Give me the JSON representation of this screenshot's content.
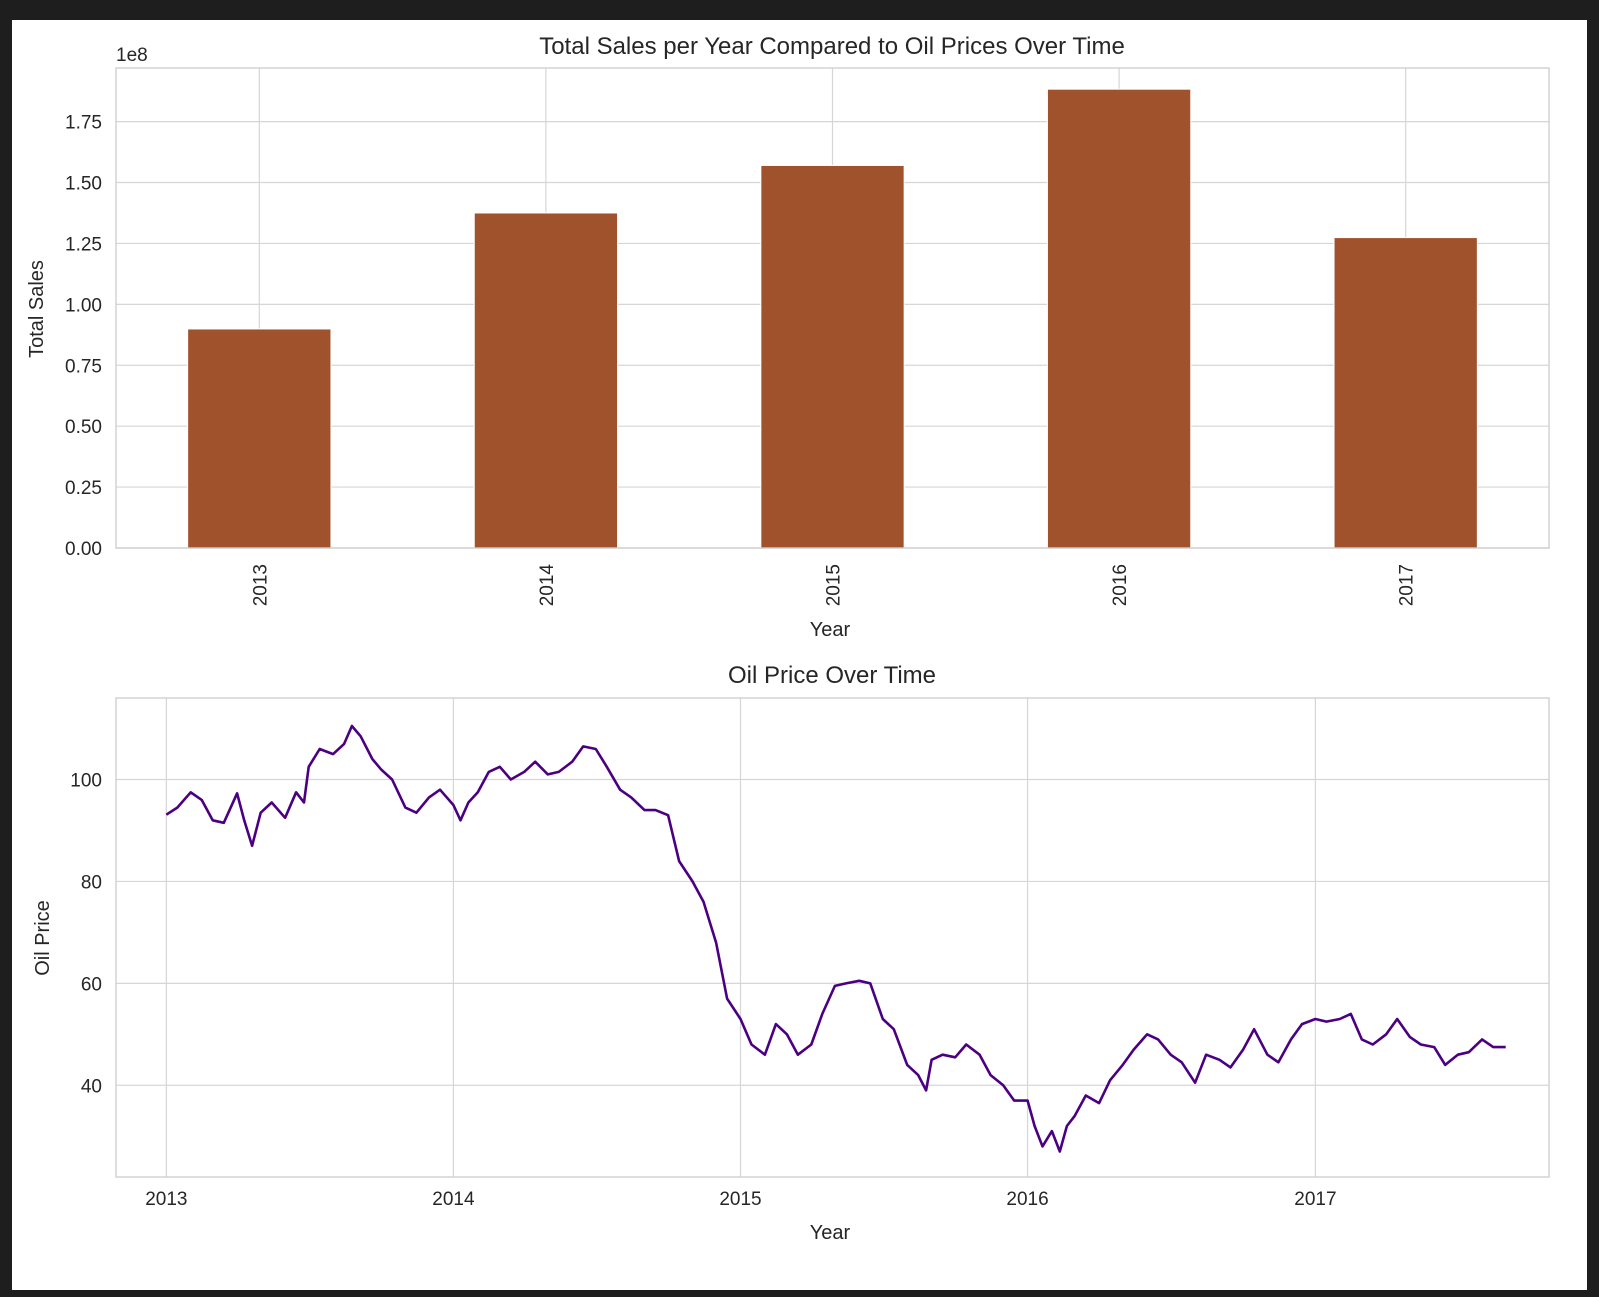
{
  "chart_data": [
    {
      "type": "bar",
      "title": "Total Sales per Year Compared to Oil Prices Over Time",
      "xlabel": "Year",
      "ylabel": "Total Sales",
      "offset_label": "1e8",
      "categories": [
        "2013",
        "2014",
        "2015",
        "2016",
        "2017"
      ],
      "values": [
        89.9,
        137.5,
        157.0,
        188.3,
        127.4
      ],
      "value_unit": "1e6",
      "ylim": [
        0,
        197
      ],
      "yticks": [
        "0.00",
        "0.25",
        "0.50",
        "0.75",
        "1.00",
        "1.25",
        "1.50",
        "1.75"
      ],
      "ytick_values": [
        0,
        25,
        50,
        75,
        100,
        125,
        150,
        175
      ],
      "color": "#a0522d",
      "grid": true
    },
    {
      "type": "line",
      "title": "Oil Price Over Time",
      "xlabel": "Year",
      "ylabel": "Oil Price",
      "xlim": [
        "2012-10-29",
        "2017-10-25"
      ],
      "ylim": [
        22,
        116
      ],
      "xticks": [
        "2013",
        "2014",
        "2015",
        "2016",
        "2017"
      ],
      "yticks": [
        "40",
        "60",
        "80",
        "100"
      ],
      "ytick_values": [
        40,
        60,
        80,
        100
      ],
      "color": "#4b0082",
      "grid": true,
      "series": [
        {
          "x": [
            "2013-01-01",
            "2013-01-15",
            "2013-02-01",
            "2013-02-15",
            "2013-03-01",
            "2013-03-15",
            "2013-04-01",
            "2013-04-10",
            "2013-04-20",
            "2013-05-01",
            "2013-05-15",
            "2013-06-01",
            "2013-06-15",
            "2013-06-25",
            "2013-07-01",
            "2013-07-15",
            "2013-08-01",
            "2013-08-15",
            "2013-08-25",
            "2013-09-05",
            "2013-09-20",
            "2013-10-01",
            "2013-10-15",
            "2013-11-01",
            "2013-11-15",
            "2013-12-01",
            "2013-12-15",
            "2014-01-01",
            "2014-01-10",
            "2014-01-20",
            "2014-02-01",
            "2014-02-15",
            "2014-03-01",
            "2014-03-15",
            "2014-04-01",
            "2014-04-15",
            "2014-05-01",
            "2014-05-15",
            "2014-06-01",
            "2014-06-15",
            "2014-07-01",
            "2014-07-15",
            "2014-08-01",
            "2014-08-15",
            "2014-09-01",
            "2014-09-15",
            "2014-10-01",
            "2014-10-15",
            "2014-11-01",
            "2014-11-15",
            "2014-12-01",
            "2014-12-15",
            "2015-01-01",
            "2015-01-15",
            "2015-02-01",
            "2015-02-15",
            "2015-03-01",
            "2015-03-15",
            "2015-04-01",
            "2015-04-15",
            "2015-05-01",
            "2015-05-15",
            "2015-06-01",
            "2015-06-15",
            "2015-07-01",
            "2015-07-15",
            "2015-08-01",
            "2015-08-15",
            "2015-08-25",
            "2015-09-01",
            "2015-09-15",
            "2015-10-01",
            "2015-10-15",
            "2015-11-01",
            "2015-11-15",
            "2015-12-01",
            "2015-12-15",
            "2016-01-01",
            "2016-01-10",
            "2016-01-20",
            "2016-02-01",
            "2016-02-11",
            "2016-02-20",
            "2016-03-01",
            "2016-03-15",
            "2016-04-01",
            "2016-04-15",
            "2016-05-01",
            "2016-05-15",
            "2016-06-01",
            "2016-06-15",
            "2016-07-01",
            "2016-07-15",
            "2016-08-01",
            "2016-08-15",
            "2016-09-01",
            "2016-09-15",
            "2016-10-01",
            "2016-10-15",
            "2016-11-01",
            "2016-11-15",
            "2016-12-01",
            "2016-12-15",
            "2017-01-01",
            "2017-01-15",
            "2017-02-01",
            "2017-02-15",
            "2017-03-01",
            "2017-03-15",
            "2017-04-01",
            "2017-04-15",
            "2017-05-01",
            "2017-05-15",
            "2017-06-01",
            "2017-06-15",
            "2017-07-01",
            "2017-07-15",
            "2017-08-01",
            "2017-08-15",
            "2017-08-31"
          ],
          "y": [
            93.1,
            94.5,
            97.5,
            96.0,
            92.0,
            91.5,
            97.3,
            92.0,
            87.0,
            93.5,
            95.5,
            92.5,
            97.5,
            95.5,
            102.5,
            106.0,
            105.0,
            107.0,
            110.5,
            108.5,
            104.0,
            102.0,
            100.0,
            94.5,
            93.5,
            96.5,
            98.0,
            95.0,
            92.0,
            95.5,
            97.5,
            101.5,
            102.5,
            100.0,
            101.5,
            103.5,
            101.0,
            101.5,
            103.5,
            106.5,
            106.0,
            102.5,
            98.0,
            96.5,
            94.0,
            94.0,
            93.0,
            84.0,
            80.0,
            76.0,
            68.0,
            57.0,
            53.0,
            48.0,
            46.0,
            52.0,
            50.0,
            46.0,
            48.0,
            54.0,
            59.5,
            60.0,
            60.5,
            60.0,
            53.0,
            51.0,
            44.0,
            42.0,
            39.0,
            45.0,
            46.0,
            45.5,
            48.0,
            46.0,
            42.0,
            40.0,
            37.0,
            37.0,
            32.0,
            28.0,
            31.0,
            27.0,
            32.0,
            34.0,
            38.0,
            36.5,
            41.0,
            44.0,
            47.0,
            50.0,
            49.0,
            46.0,
            44.5,
            40.5,
            46.0,
            45.0,
            43.5,
            47.0,
            51.0,
            46.0,
            44.5,
            49.0,
            52.0,
            53.0,
            52.5,
            53.0,
            54.0,
            49.0,
            48.0,
            50.0,
            53.0,
            49.5,
            48.0,
            47.5,
            44.0,
            46.0,
            46.5,
            49.0,
            47.5,
            47.5
          ]
        }
      ]
    }
  ]
}
